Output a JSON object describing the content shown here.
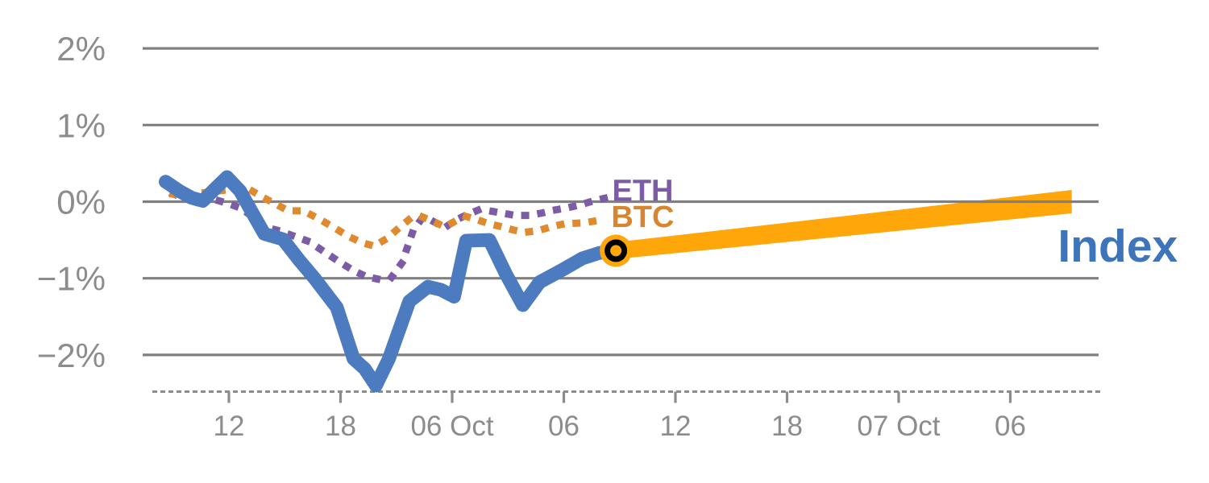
{
  "chart_data": {
    "type": "line",
    "title": "",
    "y_axis": {
      "unit": "%",
      "tick_labels": [
        "2%",
        "1%",
        "0%",
        "−1%",
        "−2%"
      ],
      "tick_values": [
        2,
        1,
        0,
        -1,
        -2
      ],
      "range": [
        -2.47,
        2.0
      ],
      "gridlines": true
    },
    "x_axis": {
      "style": "dashed",
      "ticks": [
        {
          "label": "12",
          "t": 12
        },
        {
          "label": "18",
          "t": 18
        },
        {
          "label": "06 Oct",
          "t": 24
        },
        {
          "label": "06",
          "t": 30
        },
        {
          "label": "12",
          "t": 36
        },
        {
          "label": "18",
          "t": 42
        },
        {
          "label": "07 Oct",
          "t": 48
        },
        {
          "label": "06",
          "t": 54
        }
      ]
    },
    "series": [
      {
        "id": "eth",
        "name": "ETH",
        "style": "dotted",
        "color": "#7D5CA6",
        "points": [
          [
            9.0,
            0.1
          ],
          [
            9.7,
            0.04
          ],
          [
            10.5,
            -0.02
          ],
          [
            11.2,
            0.03
          ],
          [
            11.9,
            -0.02
          ],
          [
            12.6,
            -0.08
          ],
          [
            13.3,
            -0.2
          ],
          [
            13.9,
            -0.33
          ],
          [
            14.7,
            -0.38
          ],
          [
            15.5,
            -0.45
          ],
          [
            16.3,
            -0.52
          ],
          [
            17.1,
            -0.65
          ],
          [
            17.9,
            -0.78
          ],
          [
            18.7,
            -0.9
          ],
          [
            19.4,
            -0.98
          ],
          [
            20.0,
            -1.01
          ],
          [
            20.7,
            -1.0
          ],
          [
            21.3,
            -0.8
          ],
          [
            21.9,
            -0.38
          ],
          [
            22.4,
            -0.21
          ],
          [
            23.0,
            -0.26
          ],
          [
            23.6,
            -0.34
          ],
          [
            24.2,
            -0.24
          ],
          [
            24.8,
            -0.17
          ],
          [
            25.4,
            -0.11
          ],
          [
            26.0,
            -0.12
          ],
          [
            26.7,
            -0.15
          ],
          [
            27.4,
            -0.18
          ],
          [
            28.1,
            -0.18
          ],
          [
            28.8,
            -0.15
          ],
          [
            29.5,
            -0.11
          ],
          [
            30.2,
            -0.08
          ],
          [
            30.9,
            -0.04
          ],
          [
            31.6,
            0.01
          ],
          [
            32.3,
            0.05
          ]
        ]
      },
      {
        "id": "btc",
        "name": "BTC",
        "style": "dotted",
        "color": "#E08A2F",
        "points": [
          [
            9.0,
            0.1
          ],
          [
            9.7,
            0.09
          ],
          [
            10.4,
            0.11
          ],
          [
            11.1,
            0.13
          ],
          [
            11.8,
            0.15
          ],
          [
            12.5,
            0.16
          ],
          [
            13.1,
            0.16
          ],
          [
            13.8,
            0.06
          ],
          [
            14.5,
            -0.03
          ],
          [
            15.2,
            -0.12
          ],
          [
            16.0,
            -0.12
          ],
          [
            16.8,
            -0.22
          ],
          [
            17.6,
            -0.33
          ],
          [
            18.4,
            -0.45
          ],
          [
            19.1,
            -0.53
          ],
          [
            19.8,
            -0.58
          ],
          [
            20.5,
            -0.48
          ],
          [
            21.2,
            -0.33
          ],
          [
            21.8,
            -0.21
          ],
          [
            22.4,
            -0.2
          ],
          [
            23.0,
            -0.26
          ],
          [
            23.6,
            -0.33
          ],
          [
            24.2,
            -0.25
          ],
          [
            24.7,
            -0.19
          ],
          [
            25.4,
            -0.24
          ],
          [
            26.0,
            -0.29
          ],
          [
            26.7,
            -0.33
          ],
          [
            27.3,
            -0.37
          ],
          [
            27.9,
            -0.4
          ],
          [
            28.6,
            -0.38
          ],
          [
            29.3,
            -0.33
          ],
          [
            30.0,
            -0.29
          ],
          [
            30.8,
            -0.28
          ],
          [
            31.5,
            -0.26
          ],
          [
            32.2,
            -0.23
          ]
        ]
      },
      {
        "id": "index",
        "name": "Index",
        "style": "solid",
        "color": "#4C7CBF",
        "points": [
          [
            8.6,
            0.26
          ],
          [
            9.4,
            0.13
          ],
          [
            10.0,
            0.05
          ],
          [
            10.6,
            0.01
          ],
          [
            11.3,
            0.18
          ],
          [
            11.9,
            0.32
          ],
          [
            12.6,
            0.14
          ],
          [
            13.2,
            -0.12
          ],
          [
            13.9,
            -0.42
          ],
          [
            14.9,
            -0.49
          ],
          [
            15.8,
            -0.77
          ],
          [
            16.6,
            -1.0
          ],
          [
            17.8,
            -1.38
          ],
          [
            18.7,
            -2.05
          ],
          [
            19.3,
            -2.18
          ],
          [
            19.9,
            -2.4
          ],
          [
            20.6,
            -2.05
          ],
          [
            21.7,
            -1.3
          ],
          [
            22.7,
            -1.11
          ],
          [
            23.4,
            -1.15
          ],
          [
            24.1,
            -1.24
          ],
          [
            24.75,
            -0.51
          ],
          [
            26.0,
            -0.5
          ],
          [
            26.9,
            -0.95
          ],
          [
            27.8,
            -1.35
          ],
          [
            28.7,
            -1.05
          ],
          [
            30.0,
            -0.88
          ],
          [
            31.0,
            -0.74
          ],
          [
            31.9,
            -0.67
          ],
          [
            32.8,
            -0.64
          ]
        ]
      },
      {
        "id": "index-projection",
        "name": "Index projection",
        "style": "band",
        "color": "#FFA60A",
        "points": [
          [
            32.8,
            -0.64
          ],
          [
            57.3,
            0.0
          ]
        ]
      }
    ],
    "marker": {
      "series": "index",
      "t": 32.8,
      "v": -0.64,
      "fill": "#FFA60A",
      "ring_color": "#000000"
    },
    "annotations": [
      {
        "text": "ETH",
        "kind": "series-label",
        "color": "#7D5CA6",
        "t": 32.6,
        "v": 0.01
      },
      {
        "text": "BTC",
        "kind": "series-label",
        "color": "#D9842E",
        "t": 32.55,
        "v": -0.33
      },
      {
        "text": "Index",
        "kind": "highlight-label",
        "color": "#3E74BA",
        "t": 56.55,
        "v": -0.78
      }
    ],
    "colors": {
      "axis_text": "#8C8C8C",
      "gridline": "#808080",
      "background": "#FFFFFF"
    }
  }
}
